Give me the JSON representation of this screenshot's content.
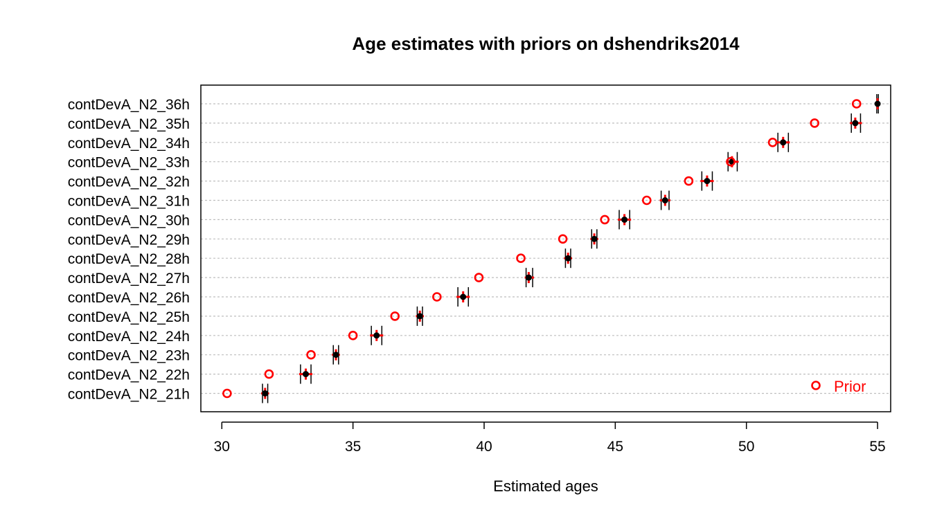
{
  "chart_data": {
    "type": "scatter",
    "title": "Age estimates with priors on dshendriks2014",
    "xlabel": "Estimated ages",
    "ylabel": "",
    "xlim": [
      29.2,
      55.5
    ],
    "xticks": [
      30,
      35,
      40,
      45,
      50,
      55
    ],
    "grid": "horizontal-dotted",
    "legend_position": "bottom-right",
    "legend": [
      {
        "name": "Prior",
        "color": "#ff0000",
        "marker": "open-circle"
      }
    ],
    "colors": {
      "estimate": "#000000",
      "prior": "#ff0000",
      "grid": "#bebebe"
    },
    "categories": [
      "contDevA_N2_36h",
      "contDevA_N2_35h",
      "contDevA_N2_34h",
      "contDevA_N2_33h",
      "contDevA_N2_32h",
      "contDevA_N2_31h",
      "contDevA_N2_30h",
      "contDevA_N2_29h",
      "contDevA_N2_28h",
      "contDevA_N2_27h",
      "contDevA_N2_26h",
      "contDevA_N2_25h",
      "contDevA_N2_24h",
      "contDevA_N2_23h",
      "contDevA_N2_22h",
      "contDevA_N2_21h"
    ],
    "estimates": [
      55.0,
      54.15,
      51.4,
      49.45,
      48.5,
      46.9,
      45.35,
      44.2,
      43.2,
      41.7,
      39.2,
      37.55,
      35.9,
      34.35,
      33.2,
      31.65
    ],
    "ci_low": [
      54.97,
      54.0,
      51.2,
      49.3,
      48.3,
      46.75,
      45.15,
      44.1,
      43.1,
      41.6,
      39.0,
      37.45,
      35.7,
      34.25,
      33.0,
      31.55
    ],
    "ci_high": [
      55.03,
      54.35,
      51.6,
      49.65,
      48.7,
      47.05,
      45.55,
      44.3,
      43.3,
      41.85,
      39.4,
      37.65,
      36.1,
      34.45,
      33.4,
      31.75
    ],
    "priors": [
      54.2,
      52.6,
      51.0,
      49.4,
      47.8,
      46.2,
      44.6,
      43.0,
      41.4,
      39.8,
      38.2,
      36.6,
      35.0,
      33.4,
      31.8,
      30.2
    ]
  }
}
